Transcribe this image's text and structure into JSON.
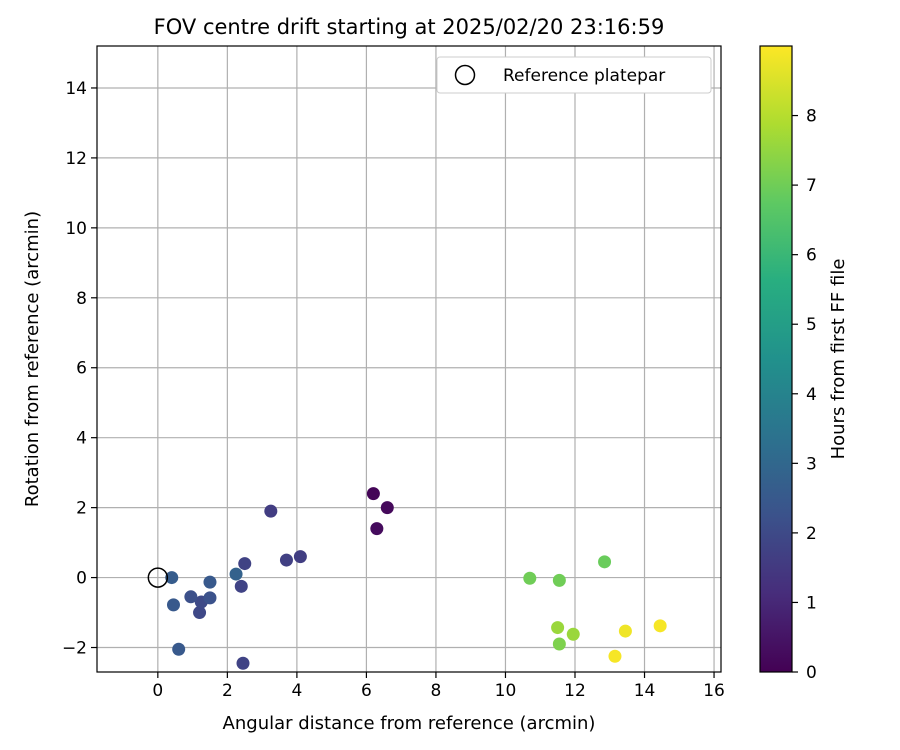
{
  "chart_data": {
    "type": "scatter",
    "title": "FOV centre drift starting at 2025/02/20 23:16:59",
    "xlabel": "Angular distance from reference (arcmin)",
    "ylabel": "Rotation from reference (arcmin)",
    "xlim": [
      -1.75,
      16.2
    ],
    "ylim": [
      -2.7,
      15.2
    ],
    "x_ticks": [
      0,
      2,
      4,
      6,
      8,
      10,
      12,
      14,
      16
    ],
    "y_ticks": [
      -2,
      0,
      2,
      4,
      6,
      8,
      10,
      12,
      14
    ],
    "grid": true,
    "legend": {
      "location": "upper-right",
      "entries": [
        "Reference platepar"
      ]
    },
    "reference": {
      "label": "Reference platepar",
      "x": 0,
      "y": 0,
      "marker": "open-circle"
    },
    "colorbar": {
      "label": "Hours from first FF file",
      "colormap": "viridis",
      "min": 0,
      "max": 9,
      "ticks": [
        0,
        1,
        2,
        3,
        4,
        5,
        6,
        7,
        8
      ]
    },
    "series": [
      {
        "points": [
          {
            "x": 6.2,
            "y": 2.4,
            "hours": 0.1
          },
          {
            "x": 6.6,
            "y": 2.0,
            "hours": 0.2
          },
          {
            "x": 6.3,
            "y": 1.4,
            "hours": 0.25
          },
          {
            "x": 3.25,
            "y": 1.9,
            "hours": 1.6
          },
          {
            "x": 4.1,
            "y": 0.6,
            "hours": 1.65
          },
          {
            "x": 3.7,
            "y": 0.5,
            "hours": 1.7
          },
          {
            "x": 2.5,
            "y": 0.4,
            "hours": 1.75
          },
          {
            "x": 2.4,
            "y": -0.25,
            "hours": 1.8
          },
          {
            "x": 2.45,
            "y": -2.45,
            "hours": 1.8
          },
          {
            "x": 1.2,
            "y": -1.0,
            "hours": 1.95
          },
          {
            "x": 1.25,
            "y": -0.7,
            "hours": 2.0
          },
          {
            "x": 0.95,
            "y": -0.55,
            "hours": 2.2
          },
          {
            "x": 1.5,
            "y": -0.58,
            "hours": 2.25
          },
          {
            "x": 1.5,
            "y": -0.13,
            "hours": 2.5
          },
          {
            "x": 0.45,
            "y": -0.78,
            "hours": 2.5
          },
          {
            "x": 0.6,
            "y": -2.05,
            "hours": 2.5
          },
          {
            "x": 0.4,
            "y": 0.0,
            "hours": 2.6
          },
          {
            "x": 2.25,
            "y": 0.1,
            "hours": 2.8
          },
          {
            "x": 12.85,
            "y": 0.45,
            "hours": 6.9
          },
          {
            "x": 10.7,
            "y": -0.02,
            "hours": 7.0
          },
          {
            "x": 11.55,
            "y": -0.08,
            "hours": 7.0
          },
          {
            "x": 11.55,
            "y": -1.9,
            "hours": 7.2
          },
          {
            "x": 11.5,
            "y": -1.43,
            "hours": 7.6
          },
          {
            "x": 11.95,
            "y": -1.62,
            "hours": 7.6
          },
          {
            "x": 13.45,
            "y": -1.53,
            "hours": 8.8
          },
          {
            "x": 14.45,
            "y": -1.38,
            "hours": 8.9
          },
          {
            "x": 13.15,
            "y": -2.25,
            "hours": 8.9
          }
        ]
      }
    ]
  }
}
